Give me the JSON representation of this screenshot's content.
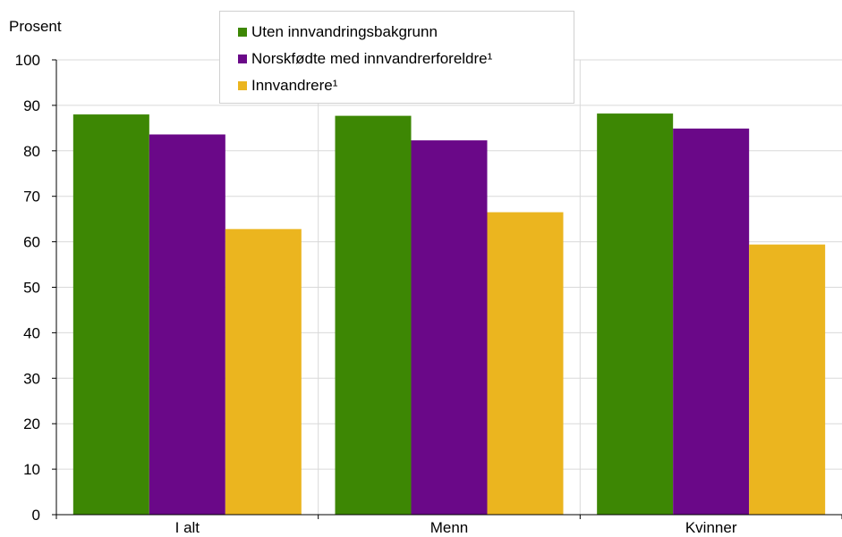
{
  "chart_data": {
    "type": "bar",
    "ylabel": "Prosent",
    "ylim": [
      0,
      100
    ],
    "yticks": [
      0,
      10,
      20,
      30,
      40,
      50,
      60,
      70,
      80,
      90,
      100
    ],
    "categories": [
      "I alt",
      "Menn",
      "Kvinner"
    ],
    "grid": true,
    "legend_position": "top-center",
    "series": [
      {
        "name": "Uten innvandringsbakgrunn",
        "color": "#3d8704",
        "values": [
          88,
          87.7,
          88.2
        ]
      },
      {
        "name": "Norskfødte med innvandrerforeldre¹",
        "color": "#6a0888",
        "values": [
          83.6,
          82.3,
          84.9
        ]
      },
      {
        "name": "Innvandrere¹",
        "color": "#ebb51f",
        "values": [
          62.8,
          66.5,
          59.4
        ]
      }
    ]
  }
}
